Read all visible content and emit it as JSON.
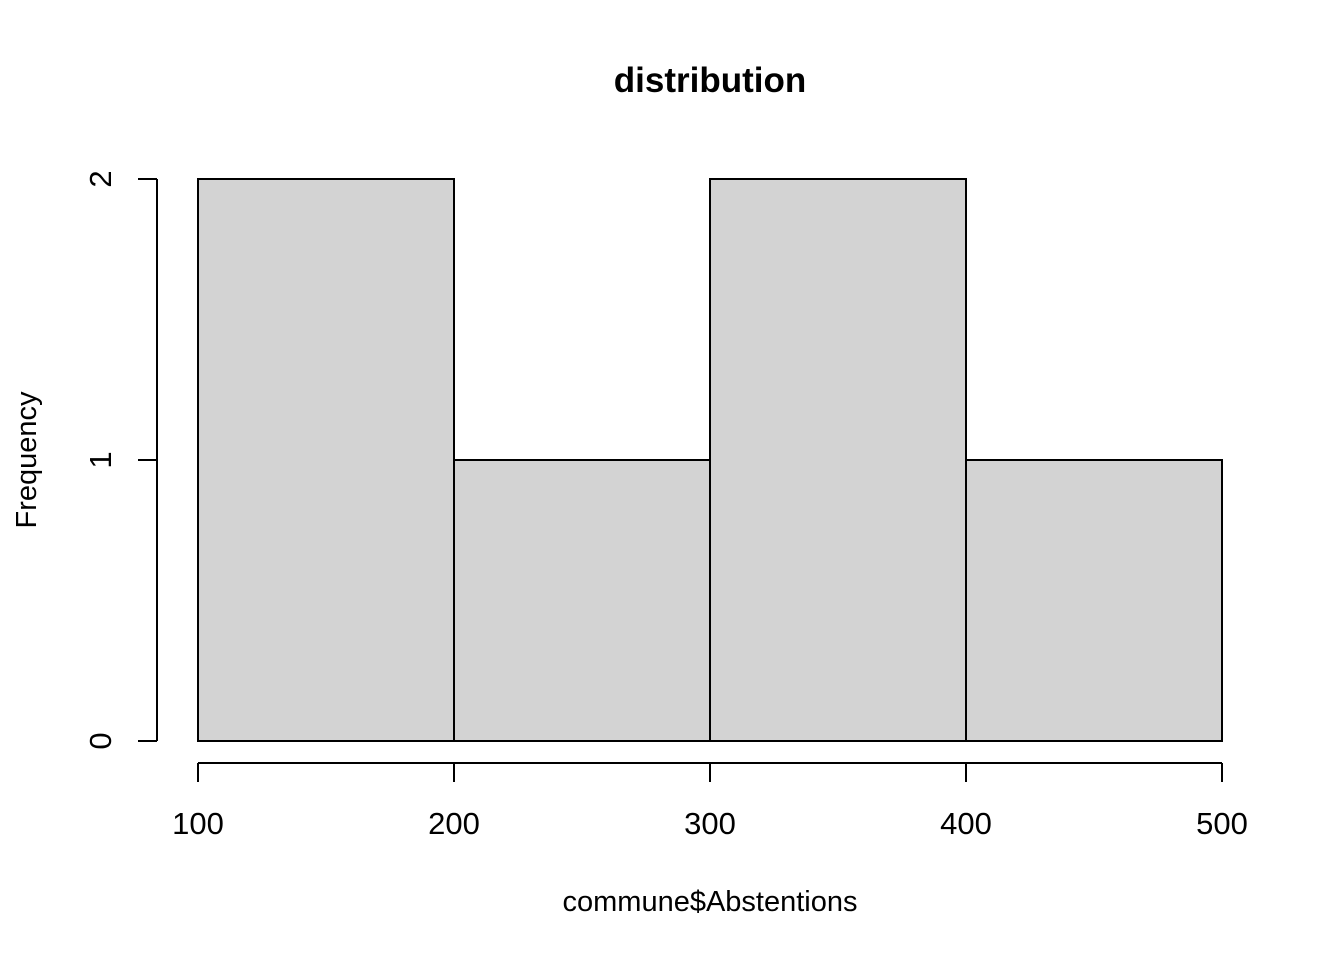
{
  "chart_data": {
    "type": "bar",
    "title": "distribution",
    "xlabel": "commune$Abstentions",
    "ylabel": "Frequency",
    "bins": [
      {
        "start": 100,
        "end": 200,
        "count": 2
      },
      {
        "start": 200,
        "end": 300,
        "count": 1
      },
      {
        "start": 300,
        "end": 400,
        "count": 2
      },
      {
        "start": 400,
        "end": 500,
        "count": 1
      }
    ],
    "xlim": [
      100,
      500
    ],
    "ylim": [
      0,
      2
    ],
    "x_ticks": [
      100,
      200,
      300,
      400,
      500
    ],
    "y_ticks": [
      0,
      1,
      2
    ],
    "bar_fill": "#d3d3d3",
    "bar_stroke": "#000000",
    "grid": false,
    "legend": "none"
  }
}
